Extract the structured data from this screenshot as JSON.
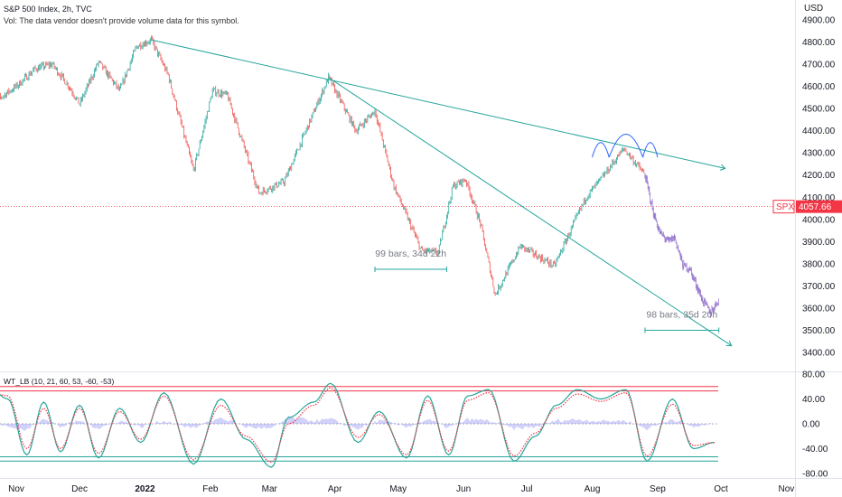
{
  "header": {
    "title": "S&P 500 Index, 2h, TVC",
    "volume_note": "Vol: The data vendor doesn't provide volume data for this symbol."
  },
  "indicator": {
    "label": "WT_LB (10, 21, 60, 53, -60, -53)"
  },
  "axis": {
    "currency": "USD"
  },
  "price_badge": {
    "symbol": "SPX",
    "value": "4057.66"
  },
  "measurements": [
    "99 bars, 34d 22h",
    "98 bars, 35d 20h"
  ],
  "colors": {
    "up": "#26a69a",
    "down": "#ef5350",
    "projection": "#9575cd",
    "trendline": "#26a69a",
    "arc": "#2962ff",
    "price_line": "#f23645",
    "wt1": "#26a69a",
    "wt2": "#f23645",
    "wt_diff": "#7b7bf0"
  },
  "chart_data": [
    {
      "type": "line",
      "title": "S&P 500 Index, 2h, TVC",
      "x_tick_labels": [
        "Nov",
        "Dec",
        "2022",
        "Feb",
        "Mar",
        "Apr",
        "May",
        "Jun",
        "Jul",
        "Aug",
        "Sep",
        "Oct",
        "Nov"
      ],
      "y_tick_labels": [
        "4900.00",
        "4800.00",
        "4700.00",
        "4600.00",
        "4500.00",
        "4400.00",
        "4300.00",
        "4200.00",
        "4100.00",
        "4000.00",
        "3900.00",
        "3800.00",
        "3700.00",
        "3600.00",
        "3500.00",
        "3400.00"
      ],
      "ylim": [
        3370,
        4960
      ],
      "last_price": 4057.66,
      "series": [
        {
          "x": [
            "2021-10-20",
            "2021-11-01",
            "2021-11-10",
            "2021-11-18",
            "2021-11-26",
            "2021-12-01",
            "2021-12-10",
            "2021-12-20",
            "2021-12-28",
            "2022-01-04",
            "2022-01-12",
            "2022-01-24",
            "2022-02-02",
            "2022-02-09",
            "2022-02-24",
            "2022-03-08",
            "2022-03-29",
            "2022-04-11",
            "2022-04-20",
            "2022-04-29",
            "2022-05-12",
            "2022-05-20",
            "2022-05-27",
            "2022-06-02",
            "2022-06-09",
            "2022-06-16",
            "2022-06-28",
            "2022-07-14",
            "2022-07-29",
            "2022-08-05",
            "2022-08-16",
            "2022-08-26"
          ],
          "y": [
            4520,
            4600,
            4680,
            4700,
            4600,
            4520,
            4710,
            4580,
            4780,
            4810,
            4650,
            4220,
            4580,
            4560,
            4120,
            4170,
            4640,
            4400,
            4490,
            4150,
            3860,
            3850,
            4150,
            4180,
            3980,
            3660,
            3880,
            3790,
            4100,
            4180,
            4320,
            4200
          ]
        },
        {
          "x": [
            "2022-08-26",
            "2022-08-30",
            "2022-09-02",
            "2022-09-06",
            "2022-09-09",
            "2022-09-13",
            "2022-09-16",
            "2022-09-20",
            "2022-09-22",
            "2022-09-26",
            "2022-09-30"
          ],
          "y": [
            4200,
            4030,
            3940,
            3900,
            3920,
            3790,
            3780,
            3690,
            3640,
            3580,
            3640
          ]
        }
      ],
      "trendlines": [
        {
          "x": [
            "2022-01-04",
            "2022-10-03"
          ],
          "y": [
            4810,
            4230
          ]
        },
        {
          "x": [
            "2022-03-29",
            "2022-10-06"
          ],
          "y": [
            4640,
            3430
          ]
        }
      ],
      "measures": [
        {
          "label": "99 bars, 34d 22h",
          "x": [
            "2022-04-20",
            "2022-05-24"
          ],
          "y": 3775
        },
        {
          "label": "98 bars, 35d 20h",
          "x": [
            "2022-08-26",
            "2022-09-30"
          ],
          "y": 3500
        }
      ],
      "arcs": [
        {
          "x": [
            "2022-08-01",
            "2022-08-09"
          ],
          "y": 4280,
          "peak": 4350
        },
        {
          "x": [
            "2022-08-09",
            "2022-08-25"
          ],
          "y": 4280,
          "peak": 4390
        },
        {
          "x": [
            "2022-08-25",
            "2022-09-01"
          ],
          "y": 4280,
          "peak": 4350
        }
      ]
    },
    {
      "type": "line",
      "title": "WT_LB (10, 21, 60, 53, -60, -53)",
      "y_tick_labels": [
        "80.00",
        "40.00",
        "0.00",
        "-40.00",
        "-80.00"
      ],
      "ylim": [
        -84,
        84
      ],
      "levels": [
        60,
        53,
        -60,
        -53
      ],
      "series": [
        {
          "name": "WT1",
          "x": [
            "2021-10-20",
            "2021-10-28",
            "2021-11-06",
            "2021-11-14",
            "2021-11-22",
            "2021-12-01",
            "2021-12-10",
            "2021-12-20",
            "2021-12-30",
            "2022-01-10",
            "2022-01-24",
            "2022-02-06",
            "2022-02-18",
            "2022-03-02",
            "2022-03-10",
            "2022-03-22",
            "2022-03-30",
            "2022-04-12",
            "2022-04-22",
            "2022-05-05",
            "2022-05-15",
            "2022-05-25",
            "2022-06-03",
            "2022-06-13",
            "2022-06-25",
            "2022-07-05",
            "2022-07-15",
            "2022-07-25",
            "2022-08-05",
            "2022-08-17",
            "2022-08-27",
            "2022-09-08",
            "2022-09-18",
            "2022-09-28"
          ],
          "y": [
            55,
            40,
            -50,
            35,
            -45,
            30,
            -55,
            25,
            -30,
            50,
            -65,
            40,
            -25,
            -70,
            10,
            35,
            65,
            -30,
            20,
            -55,
            45,
            -50,
            45,
            55,
            -60,
            -20,
            30,
            55,
            40,
            55,
            -60,
            40,
            -40,
            -30
          ]
        },
        {
          "name": "WT2",
          "x": [
            "2021-10-20",
            "2021-10-28",
            "2021-11-06",
            "2021-11-14",
            "2021-11-22",
            "2021-12-01",
            "2021-12-10",
            "2021-12-20",
            "2021-12-30",
            "2022-01-10",
            "2022-01-24",
            "2022-02-06",
            "2022-02-18",
            "2022-03-02",
            "2022-03-10",
            "2022-03-22",
            "2022-03-30",
            "2022-04-12",
            "2022-04-22",
            "2022-05-05",
            "2022-05-15",
            "2022-05-25",
            "2022-06-03",
            "2022-06-13",
            "2022-06-25",
            "2022-07-05",
            "2022-07-15",
            "2022-07-25",
            "2022-08-05",
            "2022-08-17",
            "2022-08-27",
            "2022-09-08",
            "2022-09-18",
            "2022-09-28"
          ],
          "y": [
            50,
            45,
            -40,
            25,
            -40,
            25,
            -48,
            20,
            -25,
            45,
            -58,
            30,
            -20,
            -62,
            0,
            30,
            58,
            -22,
            15,
            -50,
            38,
            -44,
            38,
            50,
            -52,
            -15,
            25,
            48,
            36,
            50,
            -52,
            32,
            -35,
            -30
          ]
        }
      ]
    }
  ]
}
